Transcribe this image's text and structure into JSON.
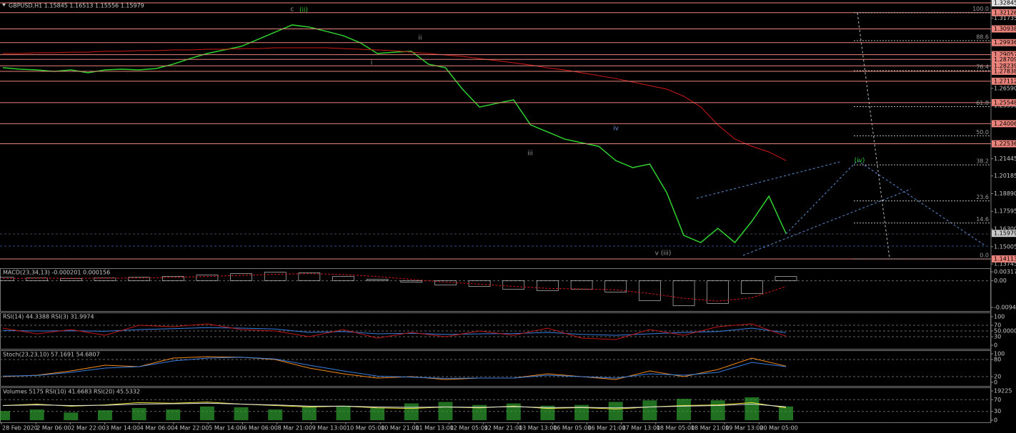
{
  "chart_data": [
    {
      "type": "line",
      "title": "GBPUSD,H1 1.15845 1.16513 1.15556 1.15979",
      "x_labels": [
        "28 Feb 2020",
        "2 Mar 06:00",
        "2 Mar 22:00",
        "3 Mar 14:00",
        "4 Mar 06:00",
        "4 Mar 22:00",
        "5 Mar 14:00",
        "6 Mar 06:00",
        "8 Mar 21:00",
        "9 Mar 13:00",
        "10 Mar 05:00",
        "10 Mar 21:00",
        "11 Mar 13:00",
        "12 Mar 05:00",
        "12 Mar 21:00",
        "13 Mar 13:00",
        "16 Mar 05:00",
        "16 Mar 21:00",
        "17 Mar 13:00",
        "18 Mar 05:00",
        "18 Mar 21:00",
        "19 Mar 13:00",
        "20 Mar 05:00"
      ],
      "series": [
        {
          "color": "#2fd12f",
          "values": [
            1.281,
            1.2799,
            1.2794,
            1.2783,
            1.2794,
            1.2773,
            1.2794,
            1.2799,
            1.2794,
            1.2804,
            1.2836,
            1.2877,
            1.2914,
            1.294,
            1.2966,
            1.3018,
            1.3071,
            1.3123,
            1.3107,
            1.3076,
            1.3044,
            1.2992,
            1.2914,
            1.2924,
            1.293,
            1.2836,
            1.281,
            1.2653,
            1.2522,
            1.2549,
            1.2575,
            1.2392,
            1.234,
            1.2288,
            1.2261,
            1.2235,
            1.2131,
            1.2079,
            1.2105,
            1.1896,
            1.1583,
            1.1531,
            1.1635,
            1.1531,
            1.1687,
            1.187,
            1.1598
          ]
        },
        {
          "color": "#d01818",
          "values": [
            1.2914,
            1.2914,
            1.2919,
            1.2919,
            1.2924,
            1.2924,
            1.293,
            1.293,
            1.2935,
            1.2935,
            1.294,
            1.294,
            1.2945,
            1.2945,
            1.295,
            1.295,
            1.2956,
            1.2956,
            1.2956,
            1.2956,
            1.295,
            1.2945,
            1.294,
            1.2935,
            1.2924,
            1.2914,
            1.2903,
            1.2893,
            1.2877,
            1.2862,
            1.2846,
            1.283,
            1.2809,
            1.2794,
            1.2773,
            1.2752,
            1.2731,
            1.2705,
            1.2679,
            1.2653,
            1.2601,
            1.2523,
            1.2392,
            1.2288,
            1.2235,
            1.2194,
            1.2131
          ]
        }
      ],
      "ylim": [
        1.13745,
        1.32845
      ],
      "yticks": [
        1.31735,
        {
          "value": 1.2659,
          "label": "1.26590"
        },
        {
          "value": 1.2533,
          "label": "1.25330"
        },
        1.21445,
        1.20185,
        {
          "value": 1.1889,
          "label": "1.18890"
        },
        1.17595,
        {
          "value": 1.163,
          "label": "1.16300"
        },
        1.15005,
        1.13745
      ],
      "levels": [
        1.32845,
        1.32126,
        1.30938,
        1.29936,
        1.29057,
        1.28709,
        1.28239,
        1.27838,
        1.27112,
        1.25548,
        1.24006,
        1.22536,
        1.14113
      ],
      "level_color": "#e8827a",
      "current_price": 1.15979,
      "fib_levels": [
        {
          "value": 1.3213,
          "label": "100.0"
        },
        {
          "value": 1.3008,
          "label": "88.6"
        },
        {
          "value": 1.2788,
          "label": "76.4"
        },
        {
          "value": 1.2525,
          "label": "61.8"
        },
        {
          "value": 1.2312,
          "label": "50.0"
        },
        {
          "value": 1.2099,
          "label": "38.2"
        },
        {
          "value": 1.1836,
          "label": "23.6"
        },
        {
          "value": 1.1674,
          "label": "14.6"
        },
        {
          "value": 1.1411,
          "label": "0.0"
        }
      ],
      "annotations": [
        {
          "text": "c",
          "color": "#9a9a9a"
        },
        {
          "text": "(ii)",
          "color": "#34c834"
        },
        {
          "text": "i",
          "color": "#9a9a9a"
        },
        {
          "text": "ii",
          "color": "#9a9a9a"
        },
        {
          "text": "iii",
          "color": "#9a9a9a"
        },
        {
          "text": "iv",
          "color": "#6f8ecc"
        },
        {
          "text": "v (iii)",
          "color": "#9a9a9a"
        },
        {
          "text": "(iv)",
          "color": "#34c834"
        }
      ]
    },
    {
      "type": "macd",
      "title": "MACD(23,34,13) -0.000201 0.000156",
      "series": [
        {
          "color": "#e0e0e0",
          "values": [
            0.0012,
            0.001,
            0.0008,
            0.001,
            0.0012,
            0.0015,
            0.002,
            0.0025,
            0.003,
            0.0028,
            0.0015,
            0.0005,
            -0.0005,
            -0.0015,
            -0.002,
            -0.003,
            -0.0035,
            -0.003,
            -0.004,
            -0.007,
            -0.0088,
            -0.008,
            -0.0045,
            0.0015
          ]
        },
        {
          "color": "#d01818",
          "values": [
            0.0008,
            0.0009,
            0.0009,
            0.0009,
            0.001,
            0.0012,
            0.0015,
            0.0019,
            0.0023,
            0.0025,
            0.0022,
            0.0015,
            0.0005,
            -0.0005,
            -0.0012,
            -0.002,
            -0.0027,
            -0.0029,
            -0.0032,
            -0.0045,
            -0.0062,
            -0.0072,
            -0.006,
            -0.002
          ]
        }
      ],
      "ylim": [
        -0.009438,
        0.003171
      ],
      "yticks": [
        0.003171,
        {
          "value": 0,
          "label": "0.00"
        },
        -0.009438
      ]
    },
    {
      "type": "line",
      "title": "RSI(14) 44.3388 RSI(3) 31.9974",
      "series": [
        {
          "color": "#3a7fe0",
          "values": [
            52,
            50,
            51,
            49,
            55,
            58,
            62,
            60,
            57,
            45,
            48,
            40,
            42,
            38,
            40,
            41,
            45,
            38,
            35,
            40,
            45,
            48,
            60,
            44
          ]
        },
        {
          "color": "#c01818",
          "values": [
            60,
            40,
            55,
            35,
            70,
            65,
            75,
            55,
            50,
            30,
            55,
            25,
            45,
            30,
            50,
            35,
            60,
            25,
            20,
            55,
            35,
            65,
            75,
            32
          ]
        }
      ],
      "ylim": [
        0,
        100
      ],
      "yticks": [
        100,
        70,
        {
          "value": 50,
          "label": "50.0000"
        },
        30,
        0
      ]
    },
    {
      "type": "line",
      "title": "Stoch(23,23,10) 57.1691 54.6807",
      "series": [
        {
          "color": "#f08a1c",
          "values": [
            20,
            25,
            40,
            60,
            55,
            85,
            90,
            88,
            80,
            50,
            30,
            15,
            20,
            10,
            15,
            15,
            30,
            20,
            10,
            40,
            20,
            45,
            85,
            57
          ]
        },
        {
          "color": "#3a7fe0",
          "values": [
            22,
            24,
            35,
            50,
            55,
            75,
            85,
            88,
            82,
            60,
            40,
            22,
            18,
            14,
            15,
            15,
            25,
            20,
            15,
            30,
            25,
            35,
            70,
            55
          ]
        }
      ],
      "ylim": [
        0,
        100
      ],
      "yticks": [
        100,
        80,
        20,
        0
      ]
    },
    {
      "type": "volume",
      "title": "Volumes 5175 RSI(10) 41.6683 RSI(20) 45.5332",
      "values": [
        6000,
        7000,
        5000,
        6500,
        8000,
        7000,
        9000,
        8500,
        7000,
        9000,
        9500,
        8000,
        11000,
        12000,
        10000,
        11000,
        9500,
        10000,
        12000,
        13000,
        14000,
        13000,
        15000,
        9000
      ],
      "color": "#2fa02f",
      "ylim": [
        0,
        19225
      ],
      "yticks": [
        19225,
        0
      ],
      "series": [
        {
          "color": "#e8e030",
          "axis": "y2",
          "values": [
            50,
            55,
            48,
            52,
            60,
            58,
            62,
            55,
            50,
            45,
            48,
            42,
            40,
            45,
            42,
            48,
            40,
            43,
            38,
            45,
            50,
            52,
            60,
            42
          ]
        },
        {
          "color": "#e0e0e0",
          "axis": "y2",
          "values": [
            50,
            52,
            50,
            51,
            55,
            56,
            58,
            55,
            52,
            48,
            48,
            45,
            44,
            45,
            44,
            46,
            43,
            44,
            42,
            45,
            48,
            50,
            55,
            46
          ]
        }
      ],
      "y2lim": [
        0,
        100
      ],
      "y2ticks": [
        70,
        30
      ]
    }
  ]
}
